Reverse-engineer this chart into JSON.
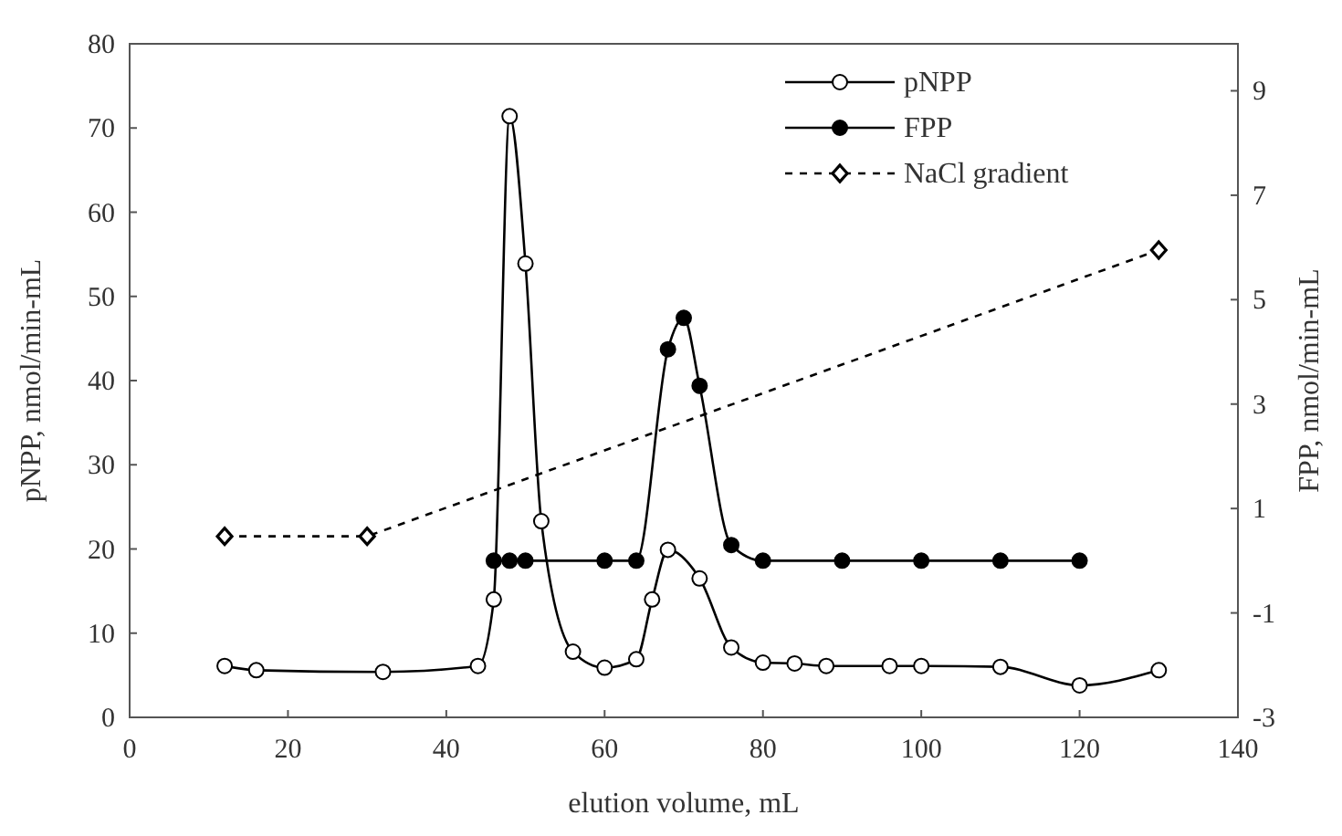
{
  "chart_data": {
    "type": "line",
    "xlabel": "elution volume, mL",
    "ylabel": "pNPP, nmol/min-mL",
    "y2label": "FPP, nmol/min-mL",
    "xlim": [
      0,
      140
    ],
    "xticks": [
      0,
      20,
      40,
      60,
      80,
      100,
      120,
      140
    ],
    "ylim": [
      0,
      80
    ],
    "yticks": [
      0,
      10,
      20,
      30,
      40,
      50,
      60,
      70,
      80
    ],
    "y2lim": [
      -3,
      9.9
    ],
    "y2ticks": [
      -3,
      -1,
      1,
      3,
      5,
      7,
      9
    ],
    "grid": false,
    "legend": "top right",
    "series": [
      {
        "name": "pNPP",
        "color": "#000000",
        "marker": "circle",
        "line_style": "solid",
        "x": [
          12,
          16,
          32,
          44,
          46,
          48,
          50,
          52,
          56,
          60,
          64,
          66,
          68,
          72,
          76,
          80,
          84,
          88,
          96,
          100,
          110,
          120,
          130
        ],
        "values": [
          6.1,
          5.6,
          5.4,
          6.1,
          14,
          71.4,
          53.9,
          23.3,
          7.8,
          5.9,
          6.9,
          14,
          19.9,
          16.5,
          8.3,
          6.5,
          6.4,
          6.1,
          6.1,
          6.1,
          6,
          3.8,
          5.6
        ]
      },
      {
        "name": "FPP",
        "color": "#000000",
        "marker": "circle",
        "line_style": "solid",
        "axis": "y2",
        "x": [
          46,
          48,
          50,
          60,
          64,
          68,
          70,
          72,
          76,
          80,
          90,
          100,
          110,
          120
        ],
        "values": [
          0,
          0,
          0,
          0,
          0,
          4.05,
          4.65,
          3.35,
          0.3,
          0,
          0,
          0,
          0,
          0
        ]
      },
      {
        "name": "NaCl gradient",
        "color": "#000000",
        "marker": "diamond",
        "line_style": "dashed",
        "x": [
          12,
          30,
          130
        ],
        "values": [
          21.5,
          21.5,
          55.5
        ]
      }
    ]
  }
}
